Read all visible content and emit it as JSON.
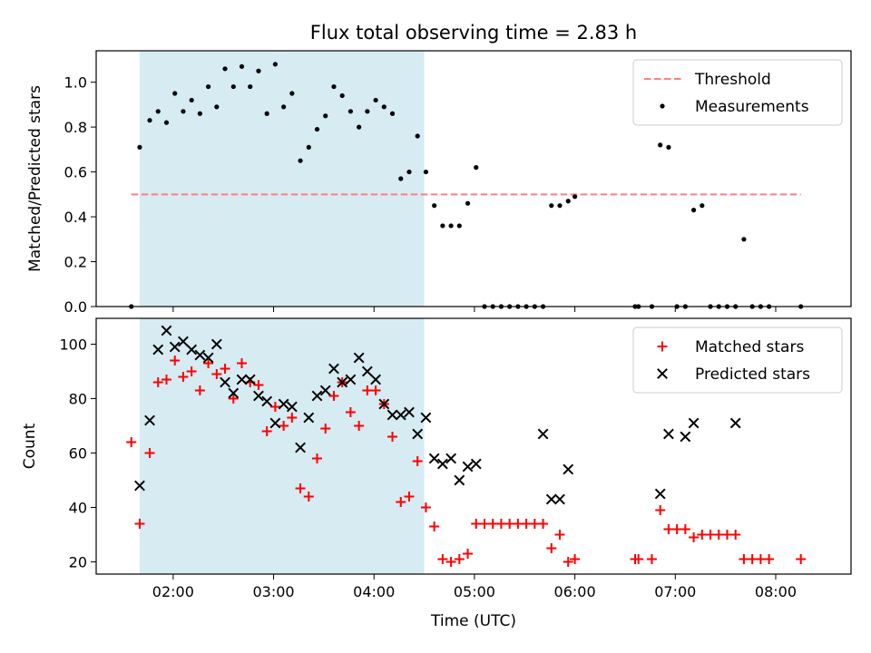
{
  "title": "Flux total observing time = 2.83 h",
  "colors": {
    "shade": "#add8e6",
    "threshold": "#ff7f7f",
    "matched": "#ff0000",
    "predicted": "#000000",
    "measurements": "#000000"
  },
  "chart_data": [
    {
      "type": "scatter",
      "panel": "top",
      "ylabel": "Matched/Predicted stars",
      "xlabel": "",
      "xlim": [
        "01:14",
        "08:45"
      ],
      "ylim": [
        0,
        1.14
      ],
      "yticks": [
        0.0,
        0.2,
        0.4,
        0.6,
        0.8,
        1.0
      ],
      "ytick_labels": [
        "0.0",
        "0.2",
        "0.4",
        "0.6",
        "0.8",
        "1.0"
      ],
      "xticks": [
        "02:00",
        "03:00",
        "04:00",
        "05:00",
        "06:00",
        "07:00",
        "08:00"
      ],
      "shaded_span": [
        "01:40",
        "04:30"
      ],
      "legend_position": "upper right",
      "threshold": {
        "name": "Threshold",
        "value": 0.5,
        "x_range": [
          "01:35",
          "08:15"
        ],
        "style": "dashed"
      },
      "series": [
        {
          "name": "Measurements",
          "marker": "dot",
          "x": [
            "01:35",
            "01:40",
            "01:46",
            "01:51",
            "01:56",
            "02:01",
            "02:06",
            "02:11",
            "02:16",
            "02:21",
            "02:26",
            "02:31",
            "02:36",
            "02:41",
            "02:46",
            "02:51",
            "02:56",
            "03:01",
            "03:06",
            "03:11",
            "03:16",
            "03:21",
            "03:26",
            "03:31",
            "03:36",
            "03:41",
            "03:46",
            "03:51",
            "03:56",
            "04:01",
            "04:06",
            "04:11",
            "04:16",
            "04:21",
            "04:26",
            "04:31",
            "04:36",
            "04:41",
            "04:46",
            "04:51",
            "04:56",
            "05:01",
            "05:06",
            "05:11",
            "05:16",
            "05:21",
            "05:26",
            "05:31",
            "05:36",
            "05:41",
            "05:46",
            "05:51",
            "05:56",
            "06:00",
            "06:36",
            "06:38",
            "06:46",
            "06:51",
            "06:56",
            "07:01",
            "07:06",
            "07:11",
            "07:16",
            "07:21",
            "07:26",
            "07:31",
            "07:36",
            "07:41",
            "07:46",
            "07:51",
            "07:56",
            "08:15"
          ],
          "y": [
            0.0,
            0.71,
            0.83,
            0.87,
            0.82,
            0.95,
            0.87,
            0.92,
            0.86,
            0.98,
            0.89,
            1.06,
            0.98,
            1.07,
            0.98,
            1.05,
            0.86,
            1.08,
            0.89,
            0.95,
            0.65,
            0.71,
            0.79,
            0.85,
            0.98,
            0.94,
            0.87,
            0.8,
            0.87,
            0.92,
            0.89,
            0.86,
            0.57,
            0.6,
            0.76,
            0.6,
            0.45,
            0.36,
            0.36,
            0.36,
            0.46,
            0.62,
            0.0,
            0.0,
            0.0,
            0.0,
            0.0,
            0.0,
            0.0,
            0.0,
            0.45,
            0.45,
            0.47,
            0.49,
            0.0,
            0.0,
            0.0,
            0.72,
            0.71,
            0.0,
            0.0,
            0.43,
            0.45,
            0.0,
            0.0,
            0.0,
            0.0,
            0.3,
            0.0,
            0.0,
            0.0,
            0.0
          ]
        }
      ]
    },
    {
      "type": "scatter",
      "panel": "bottom",
      "xlabel": "Time (UTC)",
      "ylabel": "Count",
      "xlim": [
        "01:14",
        "08:45"
      ],
      "ylim": [
        15.5,
        109.5
      ],
      "yticks": [
        20,
        40,
        60,
        80,
        100
      ],
      "ytick_labels": [
        "20",
        "40",
        "60",
        "80",
        "100"
      ],
      "xticks": [
        "02:00",
        "03:00",
        "04:00",
        "05:00",
        "06:00",
        "07:00",
        "08:00"
      ],
      "xtick_labels": [
        "02:00",
        "03:00",
        "04:00",
        "05:00",
        "06:00",
        "07:00",
        "08:00"
      ],
      "shaded_span": [
        "01:40",
        "04:30"
      ],
      "legend_position": "upper right",
      "series": [
        {
          "name": "Matched stars",
          "marker": "plus",
          "x": [
            "01:35",
            "01:40",
            "01:46",
            "01:51",
            "01:56",
            "02:01",
            "02:06",
            "02:11",
            "02:16",
            "02:21",
            "02:26",
            "02:31",
            "02:36",
            "02:41",
            "02:46",
            "02:51",
            "02:56",
            "03:01",
            "03:06",
            "03:11",
            "03:16",
            "03:21",
            "03:26",
            "03:31",
            "03:36",
            "03:41",
            "03:46",
            "03:51",
            "03:56",
            "04:01",
            "04:06",
            "04:11",
            "04:16",
            "04:21",
            "04:26",
            "04:31",
            "04:36",
            "04:41",
            "04:46",
            "04:51",
            "04:56",
            "05:01",
            "05:06",
            "05:11",
            "05:16",
            "05:21",
            "05:26",
            "05:31",
            "05:36",
            "05:41",
            "05:46",
            "05:51",
            "05:56",
            "06:00",
            "06:36",
            "06:38",
            "06:46",
            "06:51",
            "06:56",
            "07:01",
            "07:06",
            "07:11",
            "07:16",
            "07:21",
            "07:26",
            "07:31",
            "07:36",
            "07:41",
            "07:46",
            "07:51",
            "07:56",
            "08:15"
          ],
          "y": [
            64,
            34,
            60,
            86,
            87,
            94,
            88,
            90,
            83,
            93,
            89,
            91,
            80,
            93,
            86,
            85,
            68,
            77,
            70,
            73,
            47,
            44,
            58,
            69,
            81,
            86,
            75,
            70,
            83,
            83,
            78,
            66,
            42,
            44,
            57,
            40,
            33,
            21,
            20,
            21,
            23,
            34,
            34,
            34,
            34,
            34,
            34,
            34,
            34,
            34,
            25,
            30,
            20,
            21,
            21,
            21,
            21,
            39,
            32,
            32,
            32,
            29,
            30,
            30,
            30,
            30,
            30,
            21,
            21,
            21,
            21,
            21
          ]
        },
        {
          "name": "Predicted stars",
          "marker": "x",
          "x": [
            "01:40",
            "01:46",
            "01:51",
            "01:56",
            "02:01",
            "02:06",
            "02:11",
            "02:16",
            "02:21",
            "02:26",
            "02:31",
            "02:36",
            "02:41",
            "02:46",
            "02:51",
            "02:56",
            "03:01",
            "03:06",
            "03:11",
            "03:16",
            "03:21",
            "03:26",
            "03:31",
            "03:36",
            "03:41",
            "03:46",
            "03:51",
            "03:56",
            "04:01",
            "04:06",
            "04:11",
            "04:16",
            "04:21",
            "04:26",
            "04:31",
            "04:36",
            "04:41",
            "04:46",
            "04:51",
            "04:56",
            "05:01",
            "05:41",
            "05:46",
            "05:51",
            "05:56",
            "06:51",
            "06:56",
            "07:06",
            "07:11",
            "07:36"
          ],
          "y": [
            48,
            72,
            98,
            105,
            99,
            101,
            98,
            96,
            95,
            100,
            86,
            82,
            87,
            87,
            81,
            79,
            71,
            78,
            77,
            62,
            73,
            81,
            83,
            91,
            86,
            87,
            95,
            90,
            87,
            78,
            74,
            74,
            75,
            67,
            73,
            58,
            56,
            58,
            50,
            55,
            56,
            67,
            43,
            43,
            54,
            45,
            67,
            66,
            71,
            71
          ]
        }
      ]
    }
  ]
}
